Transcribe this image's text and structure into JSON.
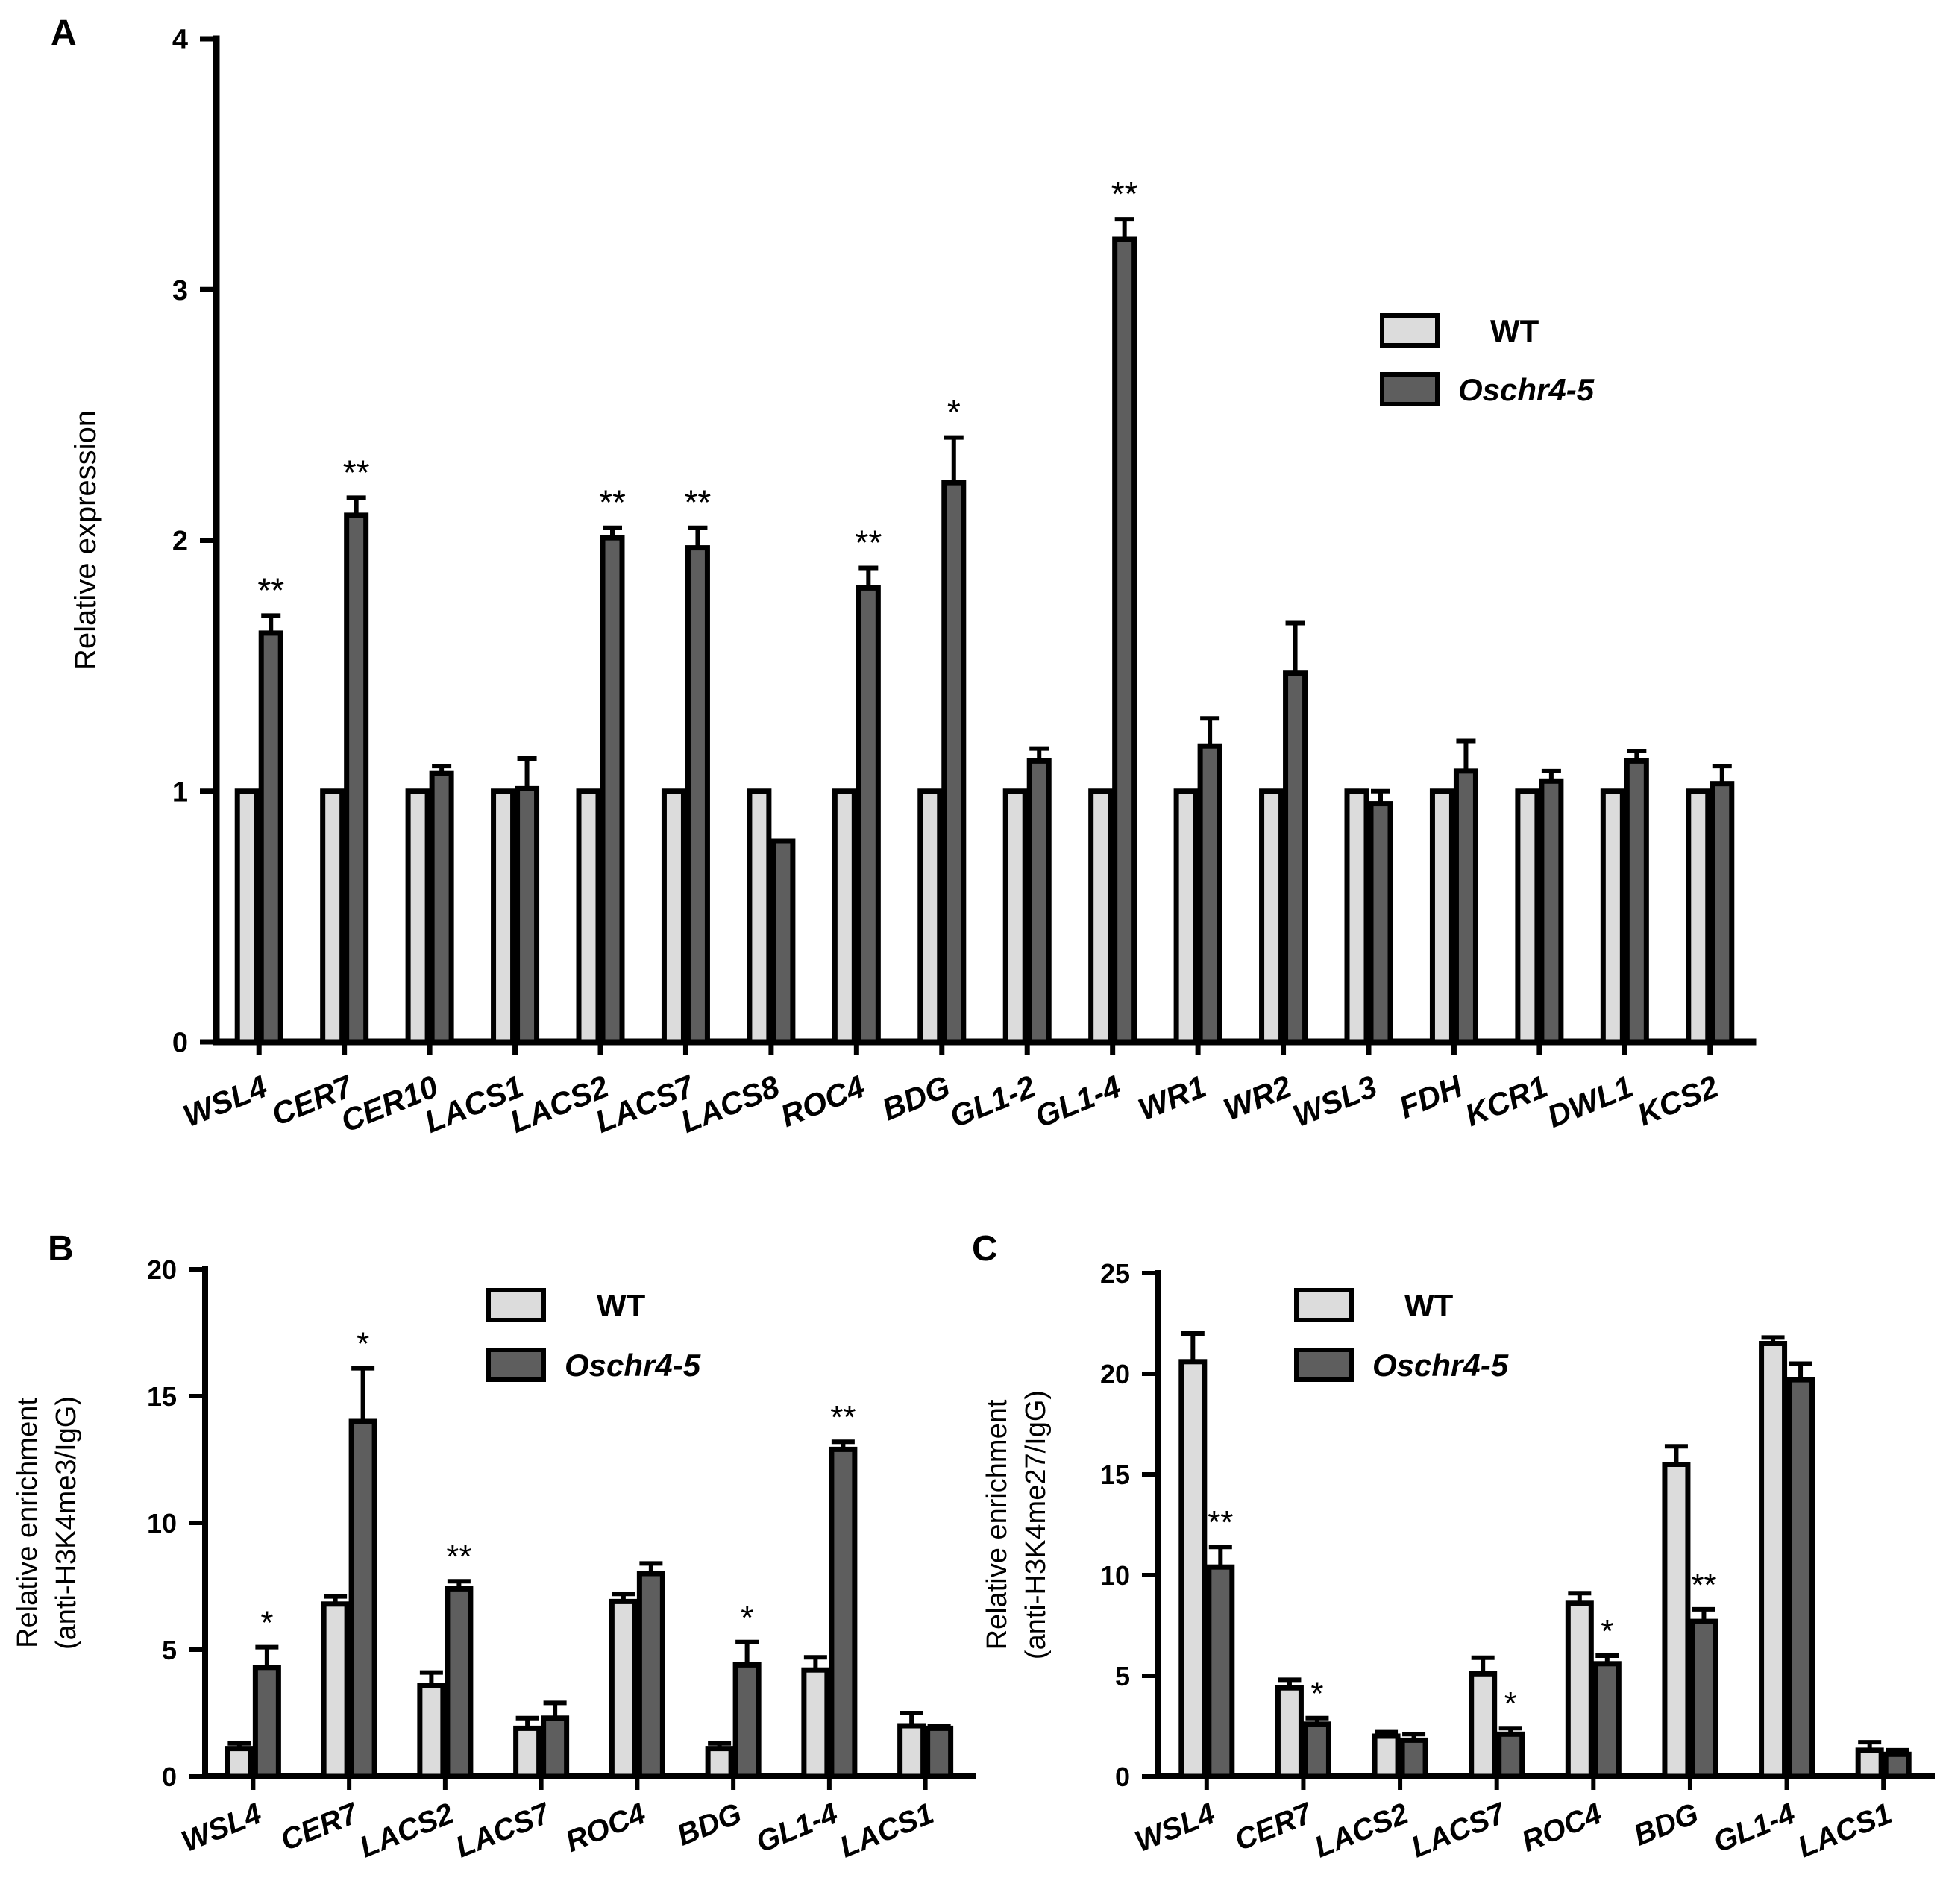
{
  "colors": {
    "wt": "#dcdcdc",
    "mutant": "#5e5e5e",
    "axis": "#000000",
    "text": "#000000"
  },
  "chart_data": [
    {
      "id": "A",
      "panel_label": "A",
      "type": "bar",
      "title": "",
      "xlabel": "",
      "ylabel": "Relative expression",
      "ylabel_lines": [
        "Relative expression"
      ],
      "ylim": [
        0,
        4
      ],
      "yticks": [
        "0",
        "1",
        "2",
        "3",
        "4"
      ],
      "legend": {
        "position": "top-right",
        "entries": [
          "WT",
          "Oschr4-5"
        ]
      },
      "categories": [
        "WSL4",
        "CER7",
        "CER10",
        "LACS1",
        "LACS2",
        "LACS7",
        "LACS8",
        "ROC4",
        "BDG",
        "GL1-2",
        "GL1-4",
        "WR1",
        "WR2",
        "WSL3",
        "FDH",
        "KCR1",
        "DWL1",
        "KCS2"
      ],
      "series": [
        {
          "name": "WT",
          "values": [
            1,
            1,
            1,
            1,
            1,
            1,
            1,
            1,
            1,
            1,
            1,
            1,
            1,
            1,
            1,
            1,
            1,
            1
          ],
          "errors": [
            0,
            0,
            0,
            0,
            0,
            0,
            0,
            0,
            0,
            0,
            0,
            0,
            0,
            0,
            0,
            0,
            0,
            0
          ]
        },
        {
          "name": "Oschr4-5",
          "values": [
            1.63,
            2.1,
            1.07,
            1.01,
            2.01,
            1.97,
            0.8,
            1.81,
            2.23,
            1.12,
            3.2,
            1.18,
            1.47,
            0.95,
            1.08,
            1.04,
            1.12,
            1.03
          ],
          "errors": [
            0.07,
            0.07,
            0.03,
            0.12,
            0.04,
            0.08,
            0,
            0.08,
            0.18,
            0.05,
            0.08,
            0.11,
            0.2,
            0.05,
            0.12,
            0.04,
            0.04,
            0.07
          ]
        }
      ],
      "annotations": [
        "**",
        "**",
        "",
        "",
        "**",
        "**",
        "",
        "**",
        "*",
        "",
        "**",
        "",
        "",
        "",
        "",
        "",
        "",
        ""
      ]
    },
    {
      "id": "B",
      "panel_label": "B",
      "type": "bar",
      "title": "",
      "xlabel": "",
      "ylabel": "Relative enrichment (anti-H3K4me3/IgG)",
      "ylabel_lines": [
        "Relative enrichment",
        "(anti-H3K4me3/IgG)"
      ],
      "ylim": [
        0,
        20
      ],
      "yticks": [
        "0",
        "5",
        "10",
        "15",
        "20"
      ],
      "legend": {
        "position": "top-right",
        "entries": [
          "WT",
          "Oschr4-5"
        ]
      },
      "categories": [
        "WSL4",
        "CER7",
        "LACS2",
        "LACS7",
        "ROC4",
        "BDG",
        "GL1-4",
        "LACS1"
      ],
      "series": [
        {
          "name": "WT",
          "values": [
            1.1,
            6.8,
            3.6,
            1.9,
            6.9,
            1.1,
            4.2,
            2.0
          ],
          "errors": [
            0.2,
            0.3,
            0.5,
            0.4,
            0.3,
            0.2,
            0.5,
            0.5
          ]
        },
        {
          "name": "Oschr4-5",
          "values": [
            4.3,
            14.0,
            7.4,
            2.3,
            8.0,
            4.4,
            12.9,
            1.9
          ],
          "errors": [
            0.8,
            2.1,
            0.3,
            0.6,
            0.4,
            0.9,
            0.3,
            0.1
          ]
        }
      ],
      "annotations": [
        "*",
        "*",
        "**",
        "",
        "",
        "*",
        "**",
        ""
      ]
    },
    {
      "id": "C",
      "panel_label": "C",
      "type": "bar",
      "title": "",
      "xlabel": "",
      "ylabel": "Relative enrichment (anti-H3K4me27/IgG)",
      "ylabel_lines": [
        "Relative enrichment",
        "(anti-H3K4me27/IgG)"
      ],
      "ylim": [
        0,
        25
      ],
      "yticks": [
        "0",
        "5",
        "10",
        "15",
        "20",
        "25"
      ],
      "legend": {
        "position": "top-center",
        "entries": [
          "WT",
          "Oschr4-5"
        ]
      },
      "categories": [
        "WSL4",
        "CER7",
        "LACS2",
        "LACS7",
        "ROC4",
        "BDG",
        "GL1-4",
        "LACS1"
      ],
      "series": [
        {
          "name": "WT",
          "values": [
            20.6,
            4.4,
            2.0,
            5.1,
            8.6,
            15.5,
            21.5,
            1.3
          ],
          "errors": [
            1.4,
            0.4,
            0.2,
            0.8,
            0.5,
            0.9,
            0.3,
            0.4
          ]
        },
        {
          "name": "Oschr4-5",
          "values": [
            10.4,
            2.6,
            1.8,
            2.1,
            5.6,
            7.7,
            19.7,
            1.1
          ],
          "errors": [
            1.0,
            0.3,
            0.3,
            0.3,
            0.4,
            0.6,
            0.8,
            0.2
          ]
        }
      ],
      "annotations": [
        "**",
        "*",
        "",
        "*",
        "*",
        "**",
        "",
        ""
      ]
    }
  ]
}
